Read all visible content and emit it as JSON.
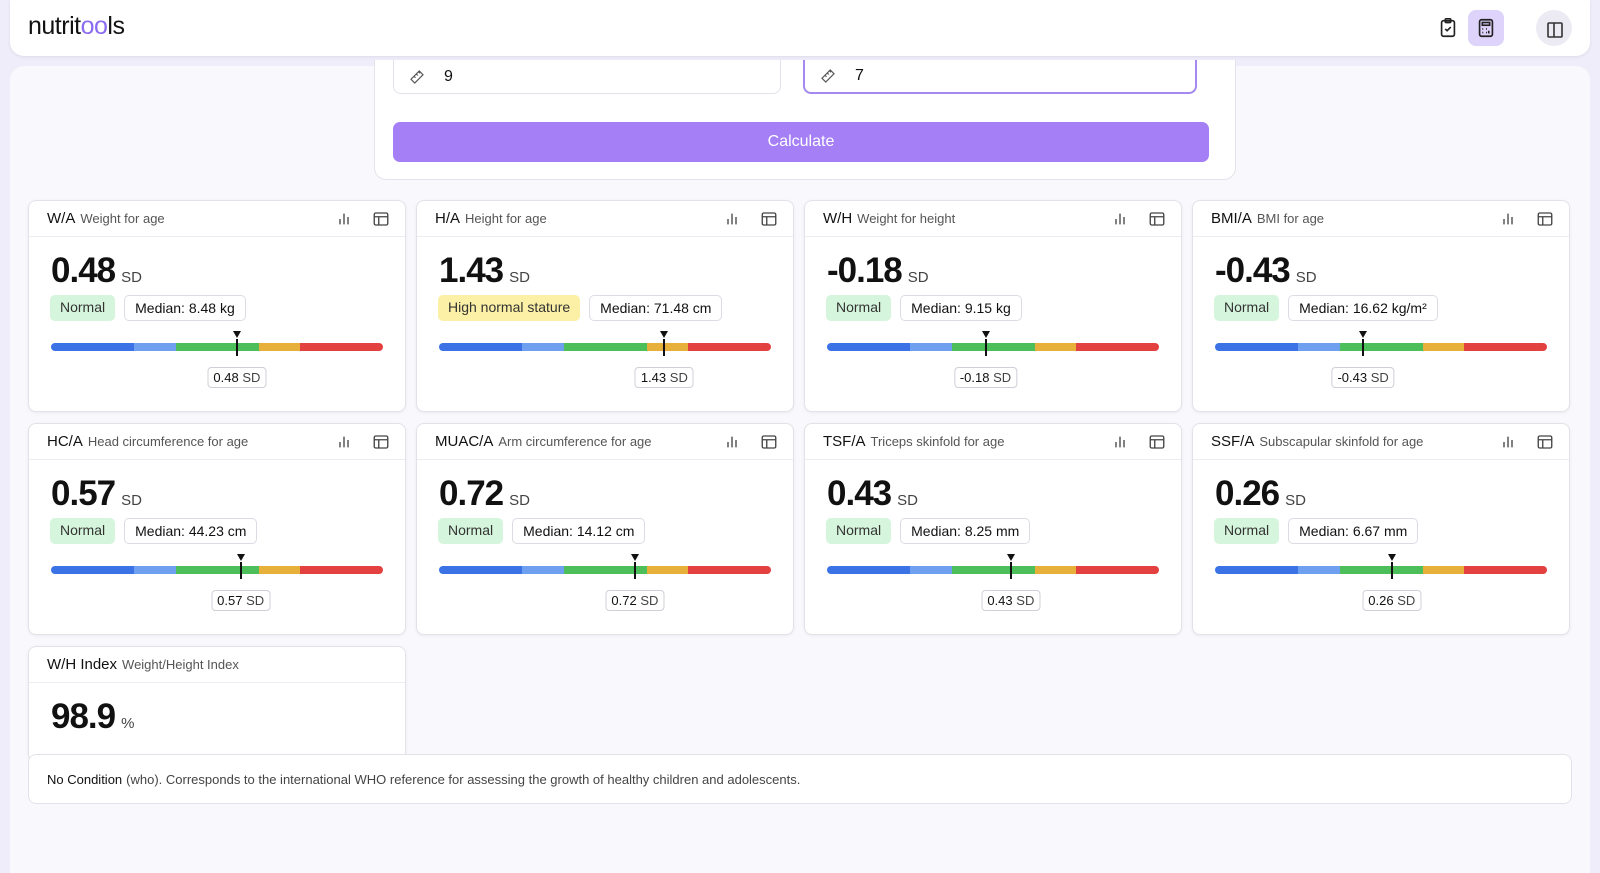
{
  "header": {
    "logo": [
      "nutrit",
      "oo",
      "ls"
    ]
  },
  "form": {
    "inputs": [
      "9",
      "7"
    ],
    "button": "Calculate"
  },
  "gauge": {
    "bounds": [
      -4,
      -2,
      -1,
      1,
      2,
      4
    ],
    "colors": [
      "#3b73e6",
      "#6fa0f0",
      "#4cbe5a",
      "#e6b03a",
      "#e34040"
    ]
  },
  "cards": [
    {
      "abbr": "W/A",
      "name": "Weight for age",
      "value": 0.48,
      "unit": "SD",
      "status": "Normal",
      "status_color": "#d5f5dc",
      "median": "Median: 8.48 kg"
    },
    {
      "abbr": "H/A",
      "name": "Height for age",
      "value": 1.43,
      "unit": "SD",
      "status": "High normal stature",
      "status_color": "#fbf0a6",
      "median": "Median: 71.48 cm"
    },
    {
      "abbr": "W/H",
      "name": "Weight for height",
      "value": -0.18,
      "unit": "SD",
      "status": "Normal",
      "status_color": "#d5f5dc",
      "median": "Median: 9.15 kg"
    },
    {
      "abbr": "BMI/A",
      "name": "BMI for age",
      "value": -0.43,
      "unit": "SD",
      "status": "Normal",
      "status_color": "#d5f5dc",
      "median": "Median: 16.62 kg/m²"
    },
    {
      "abbr": "HC/A",
      "name": "Head circumference for age",
      "value": 0.57,
      "unit": "SD",
      "status": "Normal",
      "status_color": "#d5f5dc",
      "median": "Median: 44.23 cm"
    },
    {
      "abbr": "MUAC/A",
      "name": "Arm circumference for age",
      "value": 0.72,
      "unit": "SD",
      "status": "Normal",
      "status_color": "#d5f5dc",
      "median": "Median: 14.12 cm"
    },
    {
      "abbr": "TSF/A",
      "name": "Triceps skinfold for age",
      "value": 0.43,
      "unit": "SD",
      "status": "Normal",
      "status_color": "#d5f5dc",
      "median": "Median: 8.25 mm"
    },
    {
      "abbr": "SSF/A",
      "name": "Subscapular skinfold for age",
      "value": 0.26,
      "unit": "SD",
      "status": "Normal",
      "status_color": "#d5f5dc",
      "median": "Median: 6.67 mm"
    },
    {
      "abbr": "W/H Index",
      "name": "Weight/Height Index",
      "value": 98.9,
      "unit": "%"
    }
  ],
  "note": {
    "bold": "No Condition",
    "text": "(who). Corresponds to the international WHO reference for assessing the growth of healthy children and adolescents."
  }
}
